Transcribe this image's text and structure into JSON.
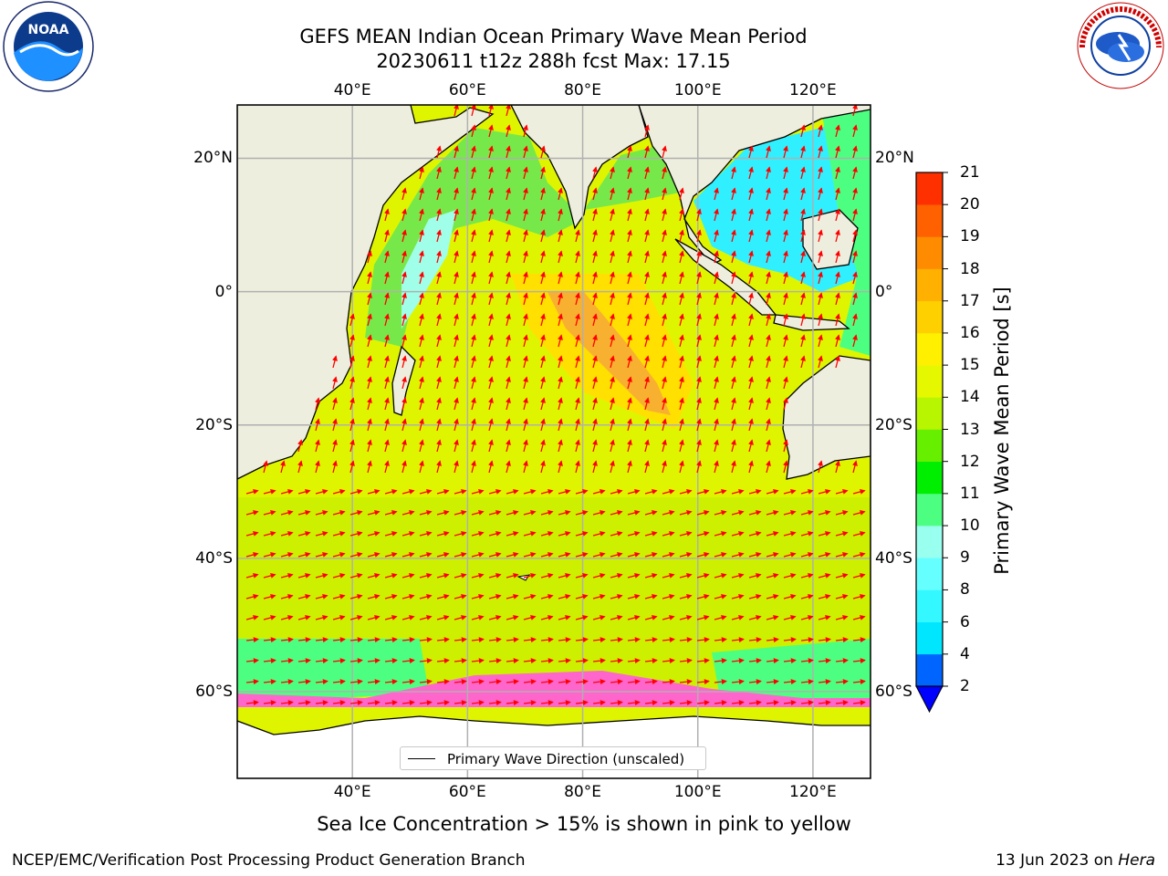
{
  "header": {
    "title_line1": "GEFS MEAN Indian Ocean Primary Wave Mean Period",
    "title_line2": "20230611 t12z 288h fcst   Max: 17.15"
  },
  "logos": {
    "left": "NOAA",
    "left_ring": "NATIONAL OCEANIC AND ATMOSPHERIC ADMINISTRATION · U.S. DEPARTMENT OF COMMERCE",
    "right_ring": "NATIONAL WEATHER SERVICE"
  },
  "map": {
    "lon_range": [
      20,
      130
    ],
    "lat_range": [
      -73,
      28
    ],
    "lon_ticks": [
      "40°E",
      "60°E",
      "80°E",
      "100°E",
      "120°E"
    ],
    "lon_tick_values": [
      40,
      60,
      80,
      100,
      120
    ],
    "lat_ticks": [
      "20°N",
      "0°",
      "20°S",
      "40°S",
      "60°S"
    ],
    "lat_tick_values": [
      20,
      0,
      -20,
      -40,
      -60
    ],
    "grid": true,
    "land_color": "#eeeede",
    "ice_color": "#ffffff",
    "vector_color": "#ff0000",
    "legend": {
      "label": "Primary Wave Direction (unscaled)",
      "placement": "bottom-center"
    }
  },
  "colorbar": {
    "label": "Primary Wave Mean Period [s]",
    "ticks": [
      "2",
      "4",
      "6",
      "8",
      "9",
      "10",
      "11",
      "12",
      "13",
      "14",
      "15",
      "16",
      "17",
      "18",
      "19",
      "20",
      "21"
    ],
    "tick_values": [
      2,
      4,
      6,
      8,
      9,
      10,
      11,
      12,
      13,
      14,
      15,
      16,
      17,
      18,
      19,
      20,
      21
    ],
    "colors": [
      "#0064ff",
      "#00e6ff",
      "#33f8ff",
      "#66ffff",
      "#99ffee",
      "#4dff80",
      "#00ee00",
      "#66f000",
      "#b8f500",
      "#e6f800",
      "#fff000",
      "#ffd000",
      "#ffb000",
      "#ff8c00",
      "#ff6000",
      "#ff3000"
    ],
    "under_color": "#0000ff",
    "extend": "min"
  },
  "footer": {
    "sea_ice_note": "Sea Ice Concentration > 15% is shown in pink to yellow",
    "credit": "NCEP/EMC/Verification Post Processing Product Generation Branch",
    "date_text": "13 Jun 2023 on ",
    "host": "Hera"
  }
}
